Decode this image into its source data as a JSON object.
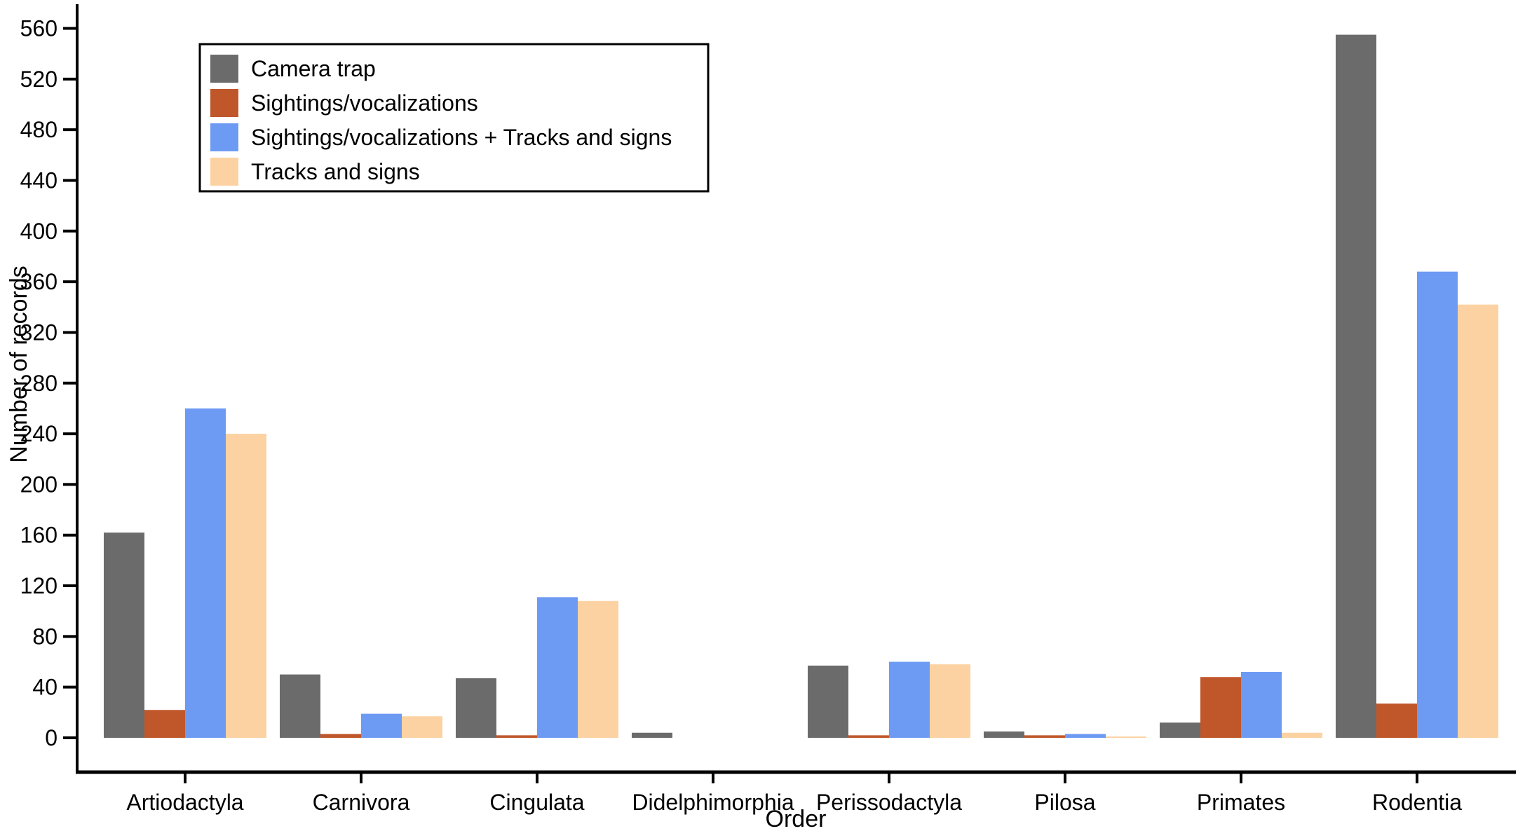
{
  "chart_data": {
    "type": "bar",
    "title": "",
    "xlabel": "Order",
    "ylabel": "Number of records",
    "categories": [
      "Artiodactyla",
      "Carnivora",
      "Cingulata",
      "Didelphimorphia",
      "Perissodactyla",
      "Pilosa",
      "Primates",
      "Rodentia"
    ],
    "series": [
      {
        "name": "Camera trap",
        "color": "#6b6b6b",
        "values": [
          162,
          50,
          47,
          4,
          57,
          5,
          12,
          555
        ]
      },
      {
        "name": "Sightings/vocalizations",
        "color": "#c0572b",
        "values": [
          22,
          3,
          2,
          0,
          2,
          2,
          48,
          27
        ]
      },
      {
        "name": "Sightings/vocalizations + Tracks and signs",
        "color": "#6d9bf3",
        "values": [
          260,
          19,
          111,
          0,
          60,
          3,
          52,
          368
        ]
      },
      {
        "name": "Tracks and signs",
        "color": "#fcd2a2",
        "values": [
          240,
          17,
          108,
          0,
          58,
          1,
          4,
          342
        ]
      }
    ],
    "ylim": [
      0,
      560
    ],
    "yticks": [
      0,
      40,
      80,
      120,
      160,
      200,
      240,
      280,
      320,
      360,
      400,
      440,
      480,
      520,
      560
    ],
    "grid": false,
    "legend_position": "top-left",
    "axis_color": "#000000",
    "background_color": "#ffffff"
  }
}
